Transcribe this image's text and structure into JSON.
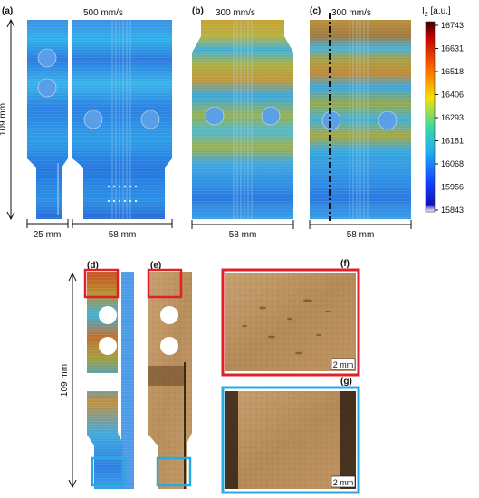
{
  "panels": {
    "a": {
      "label": "(a)",
      "speed": "500 mm/s",
      "dim_height": "109 mm",
      "dim_left_width": "25 mm",
      "dim_right_width": "58 mm"
    },
    "b": {
      "label": "(b)",
      "speed": "300 mm/s",
      "dim_width": "58 mm"
    },
    "c": {
      "label": "(c)",
      "speed": "300 mm/s",
      "dim_width": "58 mm"
    },
    "d": {
      "label": "(d)",
      "dim_height": "109 mm"
    },
    "e": {
      "label": "(e)"
    },
    "f": {
      "label": "(f)",
      "scale_bar": "2 mm"
    },
    "g": {
      "label": "(g)",
      "scale_bar": "2 mm"
    }
  },
  "colorbar": {
    "title_main": "I",
    "title_sub": "2",
    "title_unit": " [a.u.]",
    "ticks": [
      "16743",
      "16631",
      "16518",
      "16406",
      "16293",
      "16181",
      "16068",
      "15956",
      "15843"
    ]
  },
  "colors": {
    "highlight_red": "#e0202a",
    "highlight_blue": "#2aa8e0"
  }
}
